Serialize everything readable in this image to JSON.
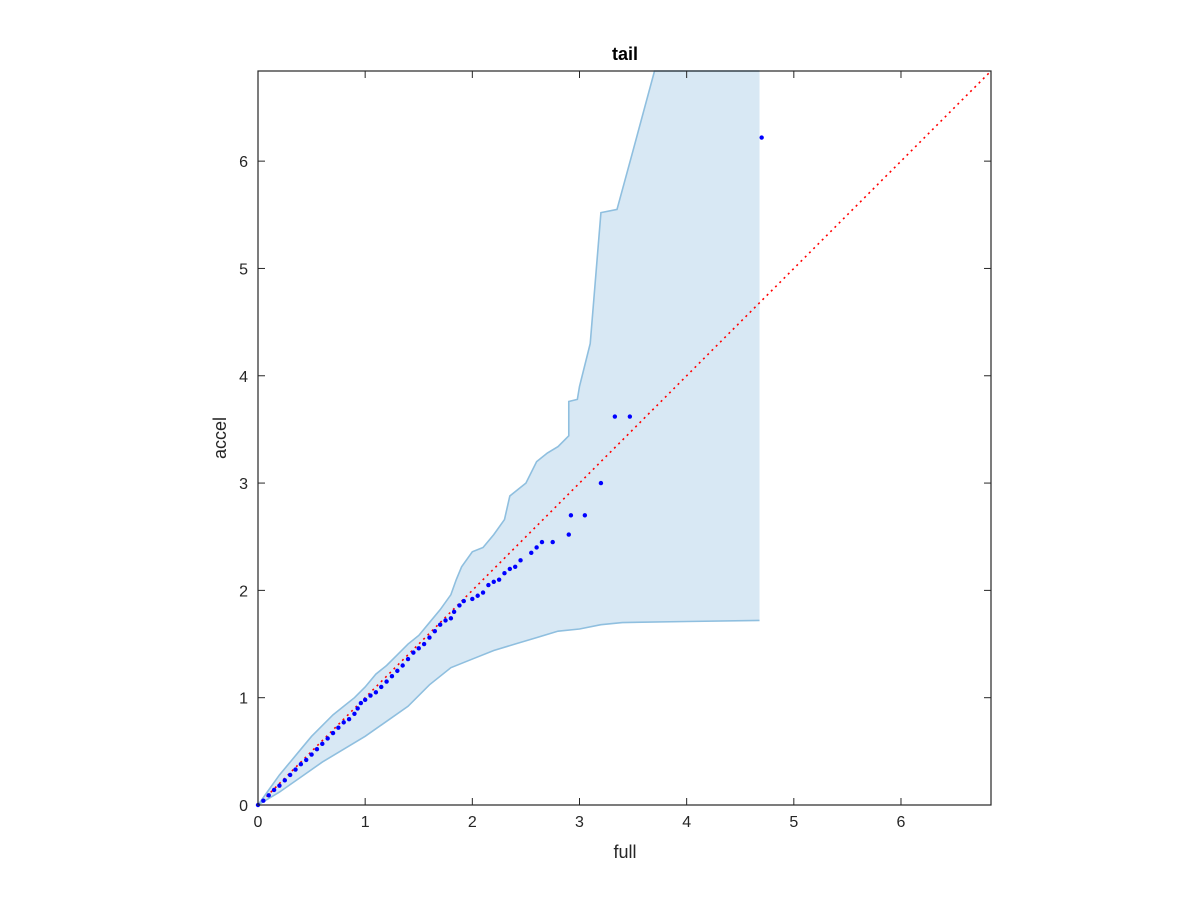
{
  "chart_data": {
    "type": "scatter",
    "title": "tail",
    "xlabel": "full",
    "ylabel": "accel",
    "xlim": [
      0,
      6.84
    ],
    "ylim": [
      0,
      6.84
    ],
    "xticks": [
      0,
      1,
      2,
      3,
      4,
      5,
      6
    ],
    "yticks": [
      0,
      1,
      2,
      3,
      4,
      5,
      6
    ],
    "grid": false,
    "legend": "none",
    "colors": {
      "points": "#0000ff",
      "reference_line": "#ff0000",
      "band_fill": "#d8e8f4",
      "band_edge": "#8fbfdf",
      "axes": "#262626"
    },
    "reference_line": {
      "style": "dotted",
      "from": [
        0,
        0
      ],
      "to": [
        6.84,
        6.84
      ]
    },
    "confidence_band": {
      "upper": [
        [
          0,
          0
        ],
        [
          0.1,
          0.14
        ],
        [
          0.2,
          0.28
        ],
        [
          0.3,
          0.4
        ],
        [
          0.4,
          0.52
        ],
        [
          0.5,
          0.64
        ],
        [
          0.6,
          0.74
        ],
        [
          0.7,
          0.84
        ],
        [
          0.8,
          0.92
        ],
        [
          0.9,
          1.0
        ],
        [
          1.0,
          1.1
        ],
        [
          1.1,
          1.22
        ],
        [
          1.2,
          1.3
        ],
        [
          1.3,
          1.4
        ],
        [
          1.4,
          1.5
        ],
        [
          1.5,
          1.58
        ],
        [
          1.6,
          1.7
        ],
        [
          1.7,
          1.82
        ],
        [
          1.8,
          1.96
        ],
        [
          1.85,
          2.1
        ],
        [
          1.9,
          2.22
        ],
        [
          2.0,
          2.36
        ],
        [
          2.1,
          2.4
        ],
        [
          2.2,
          2.52
        ],
        [
          2.3,
          2.66
        ],
        [
          2.35,
          2.88
        ],
        [
          2.45,
          2.96
        ],
        [
          2.5,
          3.0
        ],
        [
          2.6,
          3.2
        ],
        [
          2.7,
          3.28
        ],
        [
          2.8,
          3.34
        ],
        [
          2.9,
          3.44
        ],
        [
          2.9,
          3.76
        ],
        [
          2.98,
          3.78
        ],
        [
          3.0,
          3.9
        ],
        [
          3.1,
          4.3
        ],
        [
          3.2,
          5.52
        ],
        [
          3.35,
          5.55
        ],
        [
          3.5,
          6.1
        ],
        [
          3.7,
          6.84
        ],
        [
          4.68,
          6.84
        ]
      ],
      "lower": [
        [
          0,
          0
        ],
        [
          0.2,
          0.12
        ],
        [
          0.4,
          0.26
        ],
        [
          0.6,
          0.4
        ],
        [
          0.8,
          0.52
        ],
        [
          1.0,
          0.64
        ],
        [
          1.2,
          0.78
        ],
        [
          1.4,
          0.92
        ],
        [
          1.6,
          1.12
        ],
        [
          1.8,
          1.28
        ],
        [
          2.0,
          1.36
        ],
        [
          2.2,
          1.44
        ],
        [
          2.4,
          1.5
        ],
        [
          2.6,
          1.56
        ],
        [
          2.8,
          1.62
        ],
        [
          3.0,
          1.64
        ],
        [
          3.2,
          1.68
        ],
        [
          3.4,
          1.7
        ],
        [
          4.0,
          1.71
        ],
        [
          4.68,
          1.72
        ]
      ]
    },
    "series": [
      {
        "x": [
          0,
          0.05,
          0.1,
          0.15,
          0.2,
          0.25,
          0.3,
          0.35,
          0.4,
          0.45,
          0.5,
          0.55,
          0.6,
          0.65,
          0.7,
          0.75,
          0.8,
          0.85,
          0.9,
          0.93,
          0.96,
          1.0,
          1.05,
          1.1,
          1.15,
          1.2,
          1.25,
          1.3,
          1.35,
          1.4,
          1.45,
          1.5,
          1.55,
          1.6,
          1.65,
          1.7,
          1.75,
          1.8,
          1.83,
          1.88,
          1.92,
          2.0,
          2.05,
          2.1,
          2.15,
          2.2,
          2.25,
          2.3,
          2.35,
          2.4,
          2.45,
          2.55,
          2.6,
          2.65,
          2.75,
          2.9,
          2.92,
          3.05,
          3.2,
          3.33,
          3.47,
          4.7
        ],
        "y": [
          0,
          0.04,
          0.09,
          0.14,
          0.18,
          0.23,
          0.28,
          0.33,
          0.38,
          0.42,
          0.47,
          0.52,
          0.57,
          0.62,
          0.67,
          0.72,
          0.77,
          0.8,
          0.85,
          0.9,
          0.95,
          0.98,
          1.02,
          1.05,
          1.1,
          1.15,
          1.2,
          1.25,
          1.3,
          1.36,
          1.42,
          1.46,
          1.5,
          1.56,
          1.62,
          1.68,
          1.72,
          1.74,
          1.8,
          1.86,
          1.9,
          1.92,
          1.95,
          1.98,
          2.05,
          2.08,
          2.1,
          2.16,
          2.2,
          2.22,
          2.28,
          2.35,
          2.4,
          2.45,
          2.45,
          2.52,
          2.7,
          2.7,
          3.0,
          3.62,
          3.62,
          6.22
        ]
      }
    ]
  }
}
